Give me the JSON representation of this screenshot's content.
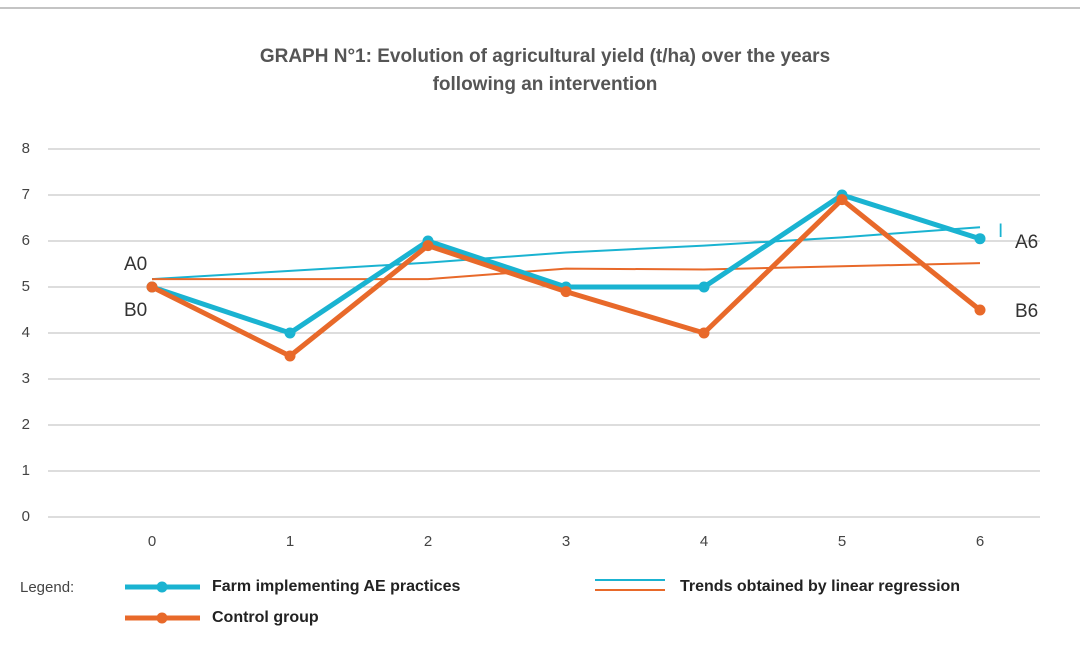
{
  "chart_data": {
    "type": "line",
    "title": [
      "GRAPH N°1: Evolution of agricultural yield (t/ha) over the years",
      "following an intervention"
    ],
    "x": [
      0,
      1,
      2,
      3,
      4,
      5,
      6
    ],
    "xlim": [
      0,
      6
    ],
    "xticks": [
      0,
      1,
      2,
      3,
      4,
      5,
      6
    ],
    "ylim": [
      0,
      8
    ],
    "yticks": [
      0,
      1,
      2,
      3,
      4,
      5,
      6,
      7,
      8
    ],
    "grid": true,
    "series": [
      {
        "name": "Farm implementing AE practices",
        "color": "#1ab3d1",
        "values": [
          5,
          4,
          6,
          5,
          5,
          7,
          6.05
        ]
      },
      {
        "name": "Control group",
        "color": "#e8692a",
        "values": [
          5,
          3.5,
          5.9,
          4.9,
          4,
          6.9,
          4.5
        ]
      }
    ],
    "trends": {
      "label": "Trends obtained by linear regression",
      "series": [
        {
          "color": "#1ab3d1",
          "values": [
            5.17,
            5.35,
            5.53,
            5.75,
            5.9,
            6.08,
            6.3
          ]
        },
        {
          "color": "#e8692a",
          "values": [
            5.17,
            5.17,
            5.17,
            5.4,
            5.38,
            5.45,
            5.52
          ]
        }
      ]
    },
    "legend_title": "Legend:",
    "annotations": [
      "A0",
      "B0",
      "A6",
      "B6",
      "I"
    ]
  }
}
